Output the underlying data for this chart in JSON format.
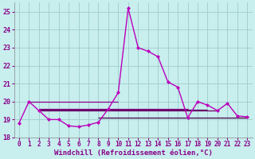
{
  "xlabel": "Windchill (Refroidissement éolien,°C)",
  "xlim": [
    -0.5,
    23.5
  ],
  "ylim": [
    18,
    25.5
  ],
  "yticks": [
    18,
    19,
    20,
    21,
    22,
    23,
    24,
    25
  ],
  "xticks": [
    0,
    1,
    2,
    3,
    4,
    5,
    6,
    7,
    8,
    9,
    10,
    11,
    12,
    13,
    14,
    15,
    16,
    17,
    18,
    19,
    20,
    21,
    22,
    23
  ],
  "background_color": "#c8eeee",
  "grid_color": "#a0cccc",
  "line_color": "#bb00bb",
  "line_color2": "#880088",
  "line_color3": "#660066",
  "main_line_x": [
    0,
    1,
    2,
    3,
    4,
    5,
    6,
    7,
    8,
    9,
    10,
    11,
    12,
    13,
    14,
    15,
    16,
    17,
    18,
    19,
    20,
    21,
    22,
    23
  ],
  "main_line_y": [
    18.8,
    20.0,
    19.5,
    19.0,
    19.0,
    18.65,
    18.6,
    18.7,
    18.85,
    19.6,
    20.5,
    25.2,
    23.0,
    22.8,
    22.5,
    21.1,
    20.8,
    19.1,
    20.0,
    19.8,
    19.5,
    19.9,
    19.2,
    19.15
  ],
  "flat_lines": [
    {
      "x": [
        1,
        10
      ],
      "y": [
        20.0,
        20.0
      ],
      "color": "#880088"
    },
    {
      "x": [
        2,
        17
      ],
      "y": [
        19.6,
        19.6
      ],
      "color": "#880088"
    },
    {
      "x": [
        2,
        19
      ],
      "y": [
        19.55,
        19.55
      ],
      "color": "#660066"
    },
    {
      "x": [
        2,
        20
      ],
      "y": [
        19.5,
        19.5
      ],
      "color": "#660066"
    },
    {
      "x": [
        8,
        23
      ],
      "y": [
        19.1,
        19.1
      ],
      "color": "#440044"
    }
  ],
  "tick_color": "#880088",
  "spine_color": "#888888",
  "xlabel_color": "#880088",
  "xlabel_fontsize": 6.5,
  "tick_fontsize": 5.5,
  "marker": "D",
  "markersize": 2.0
}
